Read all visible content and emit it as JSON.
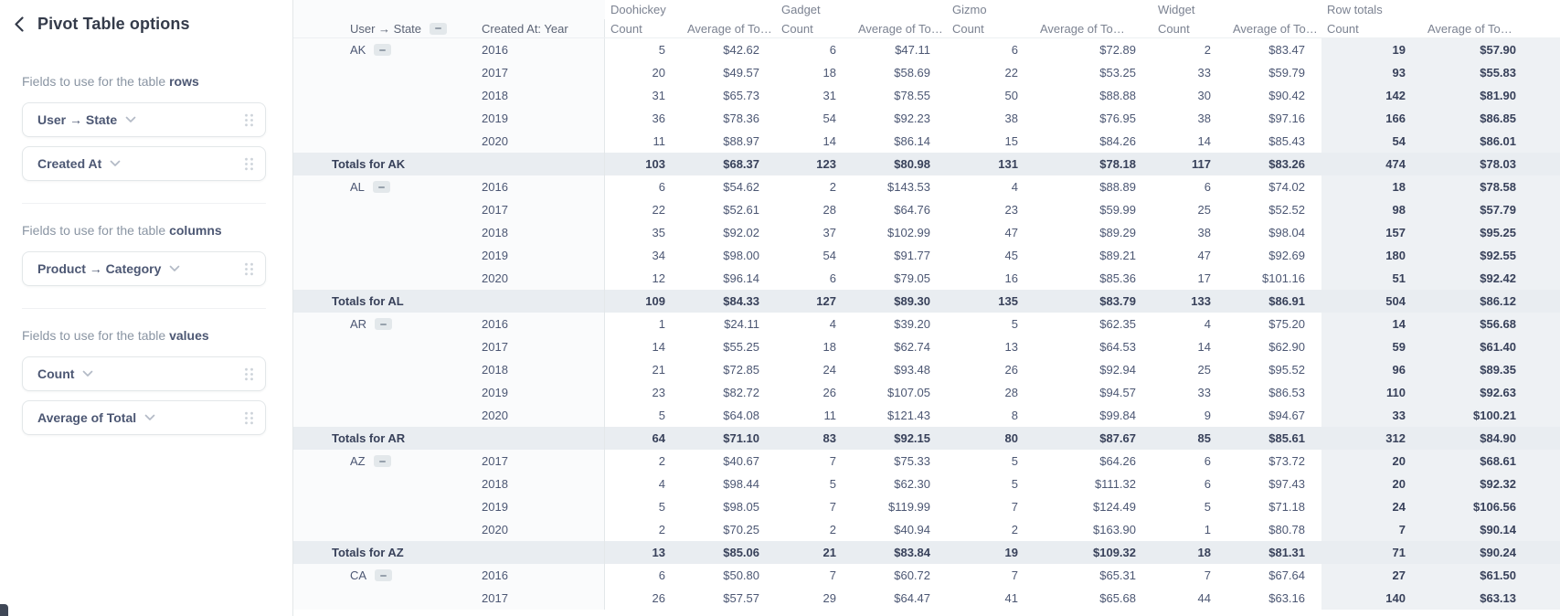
{
  "sidebar": {
    "title": "Pivot Table options",
    "icons": {
      "back": "chevron-left",
      "field_menu": "chevron-down",
      "drag": "grip-dots",
      "collapse": "minus"
    },
    "sections": [
      {
        "label_prefix": "Fields to use for the table",
        "label_bold": "rows",
        "fields": [
          {
            "label": "User → State"
          },
          {
            "label": "Created At"
          }
        ]
      },
      {
        "label_prefix": "Fields to use for the table",
        "label_bold": "columns",
        "fields": [
          {
            "label": "Product → Category"
          }
        ]
      },
      {
        "label_prefix": "Fields to use for the table",
        "label_bold": "values",
        "fields": [
          {
            "label": "Count"
          },
          {
            "label": "Average of Total"
          }
        ]
      }
    ]
  },
  "table": {
    "row_headers": {
      "state": "User → State",
      "year": "Created At: Year"
    },
    "groups": [
      "Doohickey",
      "Gadget",
      "Gizmo",
      "Widget",
      "Row totals"
    ],
    "subcolumns": [
      "Count",
      "Average of To…"
    ],
    "rows": [
      {
        "state": "AK",
        "year": "2016",
        "values": [
          "5",
          "$42.62",
          "6",
          "$47.11",
          "6",
          "$72.89",
          "2",
          "$83.47",
          "19",
          "$57.90"
        ]
      },
      {
        "year": "2017",
        "values": [
          "20",
          "$49.57",
          "18",
          "$58.69",
          "22",
          "$53.25",
          "33",
          "$59.79",
          "93",
          "$55.83"
        ]
      },
      {
        "year": "2018",
        "values": [
          "31",
          "$65.73",
          "31",
          "$78.55",
          "50",
          "$88.88",
          "30",
          "$90.42",
          "142",
          "$81.90"
        ]
      },
      {
        "year": "2019",
        "values": [
          "36",
          "$78.36",
          "54",
          "$92.23",
          "38",
          "$76.95",
          "38",
          "$97.16",
          "166",
          "$86.85"
        ]
      },
      {
        "year": "2020",
        "values": [
          "11",
          "$88.97",
          "14",
          "$86.14",
          "15",
          "$84.26",
          "14",
          "$85.43",
          "54",
          "$86.01"
        ]
      },
      {
        "subtotal": true,
        "label": "Totals for AK",
        "values": [
          "103",
          "$68.37",
          "123",
          "$80.98",
          "131",
          "$78.18",
          "117",
          "$83.26",
          "474",
          "$78.03"
        ]
      },
      {
        "state": "AL",
        "year": "2016",
        "values": [
          "6",
          "$54.62",
          "2",
          "$143.53",
          "4",
          "$88.89",
          "6",
          "$74.02",
          "18",
          "$78.58"
        ]
      },
      {
        "year": "2017",
        "values": [
          "22",
          "$52.61",
          "28",
          "$64.76",
          "23",
          "$59.99",
          "25",
          "$52.52",
          "98",
          "$57.79"
        ]
      },
      {
        "year": "2018",
        "values": [
          "35",
          "$92.02",
          "37",
          "$102.99",
          "47",
          "$89.29",
          "38",
          "$98.04",
          "157",
          "$95.25"
        ]
      },
      {
        "year": "2019",
        "values": [
          "34",
          "$98.00",
          "54",
          "$91.77",
          "45",
          "$89.21",
          "47",
          "$92.69",
          "180",
          "$92.55"
        ]
      },
      {
        "year": "2020",
        "values": [
          "12",
          "$96.14",
          "6",
          "$79.05",
          "16",
          "$85.36",
          "17",
          "$101.16",
          "51",
          "$92.42"
        ]
      },
      {
        "subtotal": true,
        "label": "Totals for AL",
        "values": [
          "109",
          "$84.33",
          "127",
          "$89.30",
          "135",
          "$83.79",
          "133",
          "$86.91",
          "504",
          "$86.12"
        ]
      },
      {
        "state": "AR",
        "year": "2016",
        "values": [
          "1",
          "$24.11",
          "4",
          "$39.20",
          "5",
          "$62.35",
          "4",
          "$75.20",
          "14",
          "$56.68"
        ]
      },
      {
        "year": "2017",
        "values": [
          "14",
          "$55.25",
          "18",
          "$62.74",
          "13",
          "$64.53",
          "14",
          "$62.90",
          "59",
          "$61.40"
        ]
      },
      {
        "year": "2018",
        "values": [
          "21",
          "$72.85",
          "24",
          "$93.48",
          "26",
          "$92.94",
          "25",
          "$95.52",
          "96",
          "$89.35"
        ]
      },
      {
        "year": "2019",
        "values": [
          "23",
          "$82.72",
          "26",
          "$107.05",
          "28",
          "$94.57",
          "33",
          "$86.53",
          "110",
          "$92.63"
        ]
      },
      {
        "year": "2020",
        "values": [
          "5",
          "$64.08",
          "11",
          "$121.43",
          "8",
          "$99.84",
          "9",
          "$94.67",
          "33",
          "$100.21"
        ]
      },
      {
        "subtotal": true,
        "label": "Totals for AR",
        "values": [
          "64",
          "$71.10",
          "83",
          "$92.15",
          "80",
          "$87.67",
          "85",
          "$85.61",
          "312",
          "$84.90"
        ]
      },
      {
        "state": "AZ",
        "year": "2017",
        "values": [
          "2",
          "$40.67",
          "7",
          "$75.33",
          "5",
          "$64.26",
          "6",
          "$73.72",
          "20",
          "$68.61"
        ]
      },
      {
        "year": "2018",
        "values": [
          "4",
          "$98.44",
          "5",
          "$62.30",
          "5",
          "$111.32",
          "6",
          "$97.43",
          "20",
          "$92.32"
        ]
      },
      {
        "year": "2019",
        "values": [
          "5",
          "$98.05",
          "7",
          "$119.99",
          "7",
          "$124.49",
          "5",
          "$71.18",
          "24",
          "$106.56"
        ]
      },
      {
        "year": "2020",
        "values": [
          "2",
          "$70.25",
          "2",
          "$40.94",
          "2",
          "$163.90",
          "1",
          "$80.78",
          "7",
          "$90.14"
        ]
      },
      {
        "subtotal": true,
        "label": "Totals for AZ",
        "values": [
          "13",
          "$85.06",
          "21",
          "$83.84",
          "19",
          "$109.32",
          "18",
          "$81.31",
          "71",
          "$90.24"
        ]
      },
      {
        "state": "CA",
        "year": "2016",
        "values": [
          "6",
          "$50.80",
          "7",
          "$60.72",
          "7",
          "$65.31",
          "7",
          "$67.64",
          "27",
          "$61.50"
        ]
      },
      {
        "year": "2017",
        "values": [
          "26",
          "$57.57",
          "29",
          "$64.47",
          "41",
          "$65.68",
          "44",
          "$63.16",
          "140",
          "$63.13"
        ]
      }
    ]
  }
}
